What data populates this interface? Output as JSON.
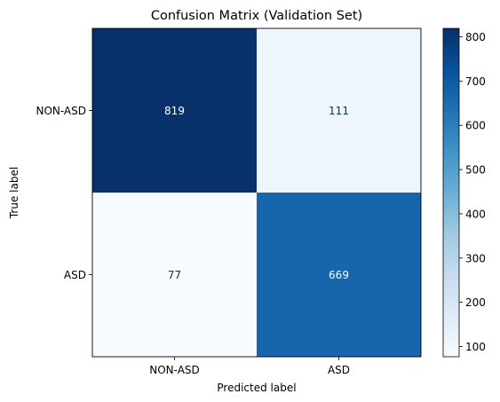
{
  "chart_data": {
    "type": "heatmap",
    "title": "Confusion Matrix (Validation Set)",
    "xlabel": "Predicted label",
    "ylabel": "True label",
    "x_categories": [
      "NON-ASD",
      "ASD"
    ],
    "y_categories": [
      "NON-ASD",
      "ASD"
    ],
    "values": [
      [
        819,
        111
      ],
      [
        77,
        669
      ]
    ],
    "colormap": "Blues",
    "colorbar": {
      "min": 77,
      "max": 819,
      "ticks": [
        100,
        200,
        300,
        400,
        500,
        600,
        700,
        800
      ],
      "tick_labels": [
        "100",
        "200",
        "300",
        "400",
        "500",
        "600",
        "700",
        "800"
      ]
    },
    "grid": false,
    "legend": "colorbar-right"
  }
}
